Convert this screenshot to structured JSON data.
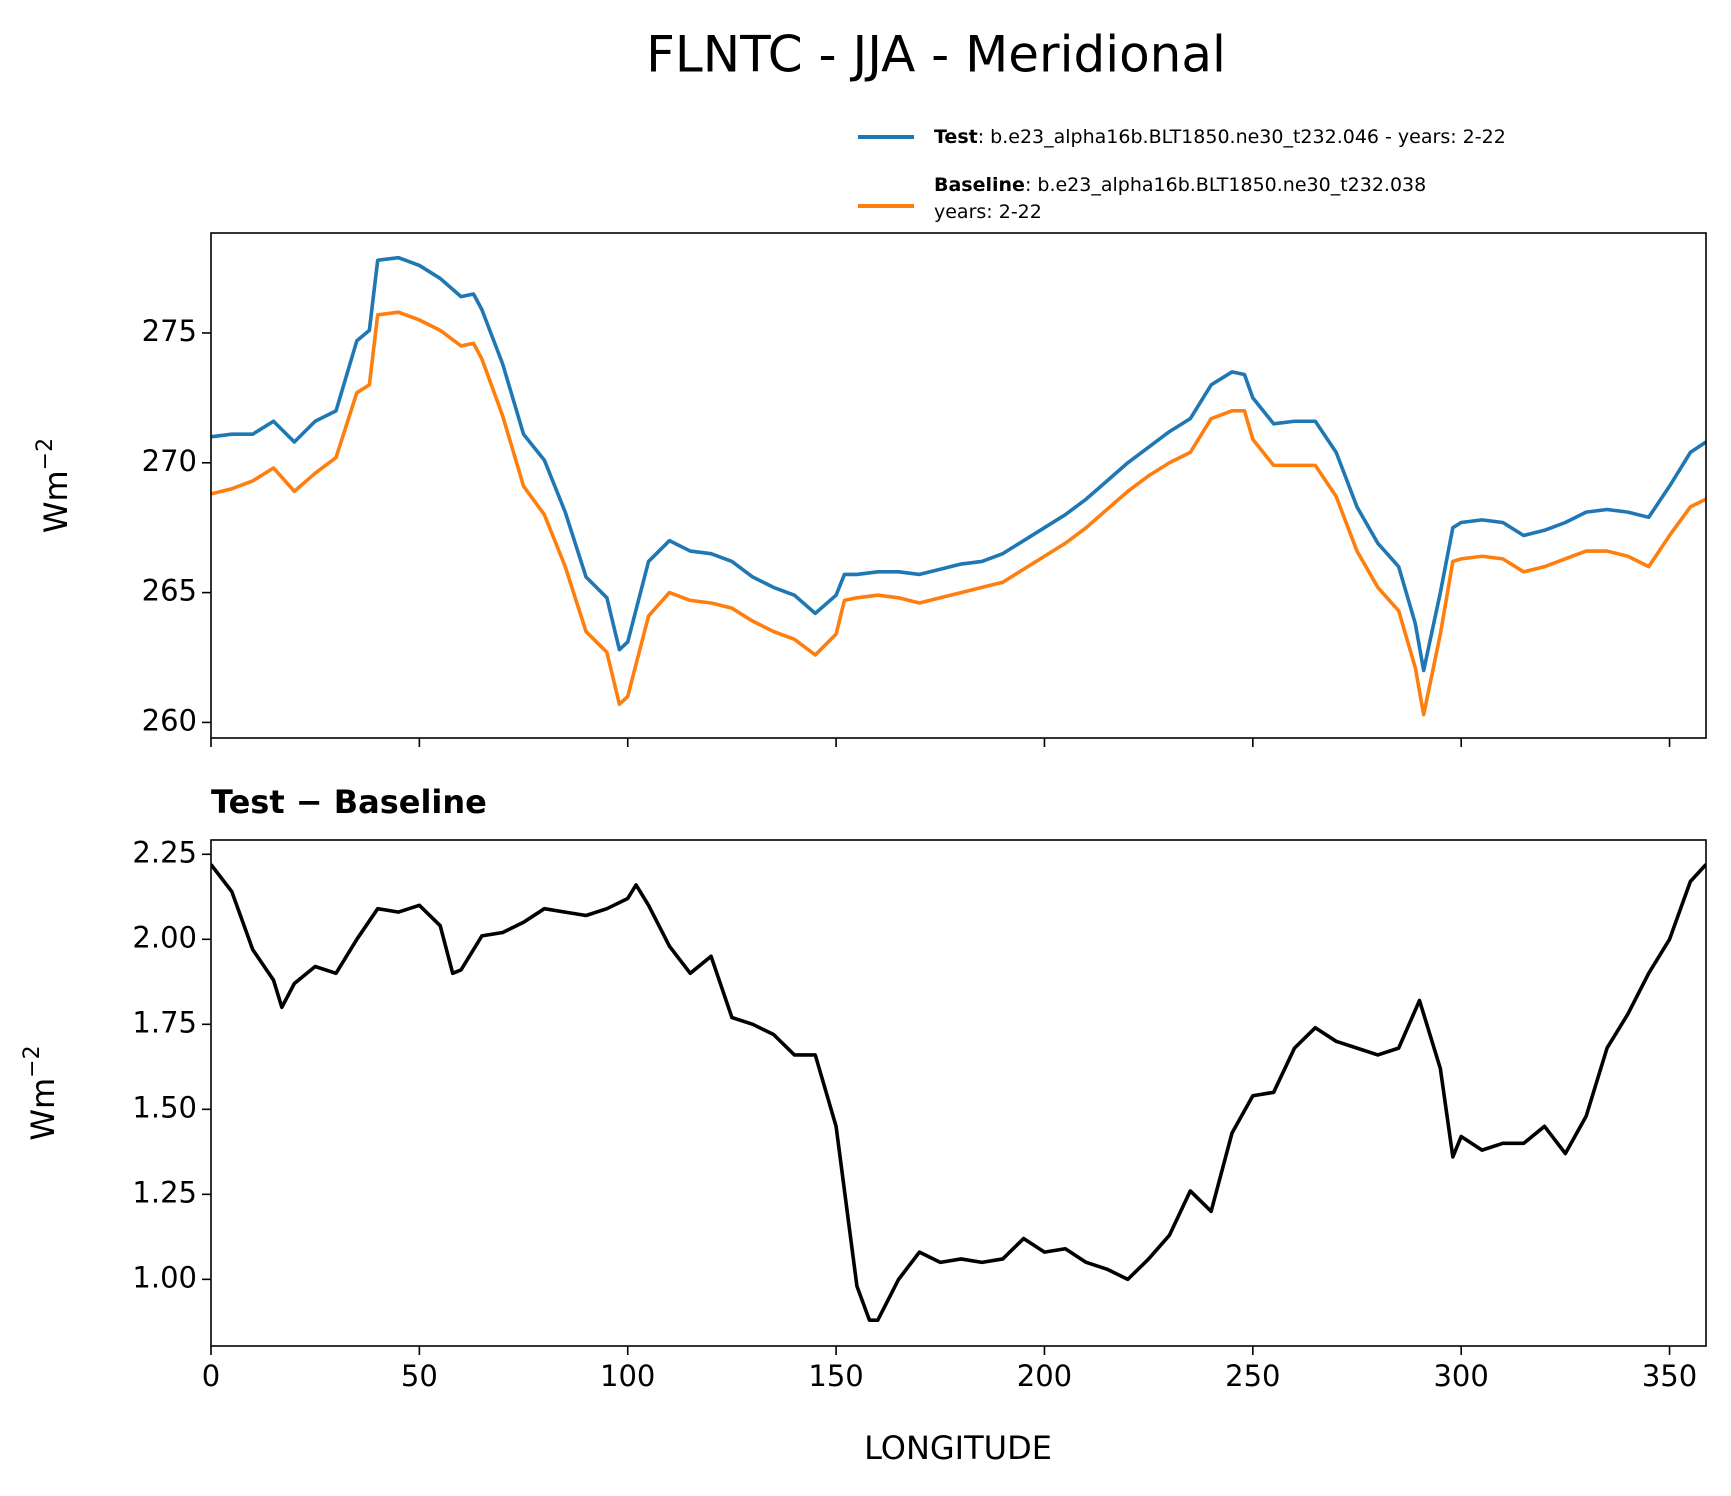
{
  "chart_data": [
    {
      "type": "line",
      "title": "FLNTC - JJA - Meridional",
      "ylabel": "Wm",
      "ylabel_sup": "−2",
      "xlim": [
        0,
        358.75
      ],
      "xticks": [
        0,
        50,
        100,
        150,
        200,
        250,
        300,
        350
      ],
      "ylim": [
        259.4,
        278.85
      ],
      "yticks": [
        260,
        265,
        270,
        275
      ],
      "x": [
        0,
        5,
        10,
        15,
        20,
        25,
        30,
        35,
        38,
        40,
        45,
        50,
        55,
        60,
        63,
        65,
        70,
        75,
        80,
        85,
        90,
        95,
        98,
        100,
        105,
        110,
        115,
        120,
        125,
        130,
        135,
        140,
        145,
        150,
        152,
        155,
        160,
        165,
        170,
        175,
        180,
        185,
        190,
        195,
        200,
        205,
        210,
        215,
        220,
        225,
        230,
        235,
        240,
        245,
        248,
        250,
        255,
        260,
        265,
        270,
        275,
        280,
        285,
        289,
        291,
        295,
        298,
        300,
        305,
        310,
        315,
        320,
        325,
        330,
        335,
        340,
        345,
        350,
        355,
        358.75
      ],
      "series": [
        {
          "name": "Test",
          "description": [
            ": b.e23_alpha16b.BLT1850.ne30_t232.046 - years: 2-22"
          ],
          "color": "#1f77b4",
          "values": [
            271.0,
            271.1,
            271.1,
            271.6,
            270.8,
            271.6,
            272.0,
            274.7,
            275.1,
            277.8,
            277.9,
            277.6,
            277.1,
            276.4,
            276.5,
            275.9,
            273.8,
            271.1,
            270.1,
            268.1,
            265.6,
            264.8,
            262.8,
            263.1,
            266.2,
            267.0,
            266.6,
            266.5,
            266.2,
            265.6,
            265.2,
            264.9,
            264.2,
            264.9,
            265.7,
            265.7,
            265.8,
            265.8,
            265.7,
            265.9,
            266.1,
            266.2,
            266.5,
            267.0,
            267.5,
            268.0,
            268.6,
            269.3,
            270.0,
            270.6,
            271.2,
            271.7,
            273.0,
            273.5,
            273.4,
            272.5,
            271.5,
            271.6,
            271.6,
            270.4,
            268.3,
            266.9,
            266.0,
            263.8,
            262.0,
            265.0,
            267.5,
            267.7,
            267.8,
            267.7,
            267.2,
            267.4,
            267.7,
            268.1,
            268.2,
            268.1,
            267.9,
            269.1,
            270.4,
            270.8
          ]
        },
        {
          "name": "Baseline",
          "description": [
            ": b.e23_alpha16b.BLT1850.ne30_t232.038",
            "years: 2-22"
          ],
          "color": "#ff7f0e",
          "values": [
            268.8,
            269.0,
            269.3,
            269.8,
            268.9,
            269.6,
            270.2,
            272.7,
            273.0,
            275.7,
            275.8,
            275.5,
            275.1,
            274.5,
            274.6,
            274.0,
            271.8,
            269.1,
            268.0,
            266.0,
            263.5,
            262.7,
            260.7,
            261.0,
            264.1,
            265.0,
            264.7,
            264.6,
            264.4,
            263.9,
            263.5,
            263.2,
            262.6,
            263.4,
            264.7,
            264.8,
            264.9,
            264.8,
            264.6,
            264.8,
            265.0,
            265.2,
            265.4,
            265.9,
            266.4,
            266.9,
            267.5,
            268.2,
            268.9,
            269.5,
            270.0,
            270.4,
            271.7,
            272.0,
            272.0,
            270.9,
            269.9,
            269.9,
            269.9,
            268.7,
            266.6,
            265.2,
            264.3,
            262.1,
            260.3,
            263.4,
            266.2,
            266.3,
            266.4,
            266.3,
            265.8,
            266.0,
            266.3,
            266.6,
            266.6,
            266.4,
            266.0,
            267.2,
            268.3,
            268.6
          ]
        }
      ]
    },
    {
      "type": "line",
      "title": "Test − Baseline",
      "ylabel": "Wm",
      "ylabel_sup": "−2",
      "xlabel": "LONGITUDE",
      "xlim": [
        0,
        358.75
      ],
      "xticks": [
        0,
        50,
        100,
        150,
        200,
        250,
        300,
        350
      ],
      "ylim": [
        0.804,
        2.292
      ],
      "yticks": [
        {
          "value": 1.0,
          "label": "1.00"
        },
        {
          "value": 1.25,
          "label": "1.25"
        },
        {
          "value": 1.5,
          "label": "1.50"
        },
        {
          "value": 1.75,
          "label": "1.75"
        },
        {
          "value": 2.0,
          "label": "2.00"
        },
        {
          "value": 2.25,
          "label": "2.25"
        }
      ],
      "x": [
        0,
        5,
        10,
        15,
        17,
        20,
        25,
        30,
        35,
        40,
        45,
        50,
        55,
        58,
        60,
        65,
        70,
        75,
        80,
        85,
        90,
        95,
        100,
        102,
        105,
        110,
        115,
        120,
        125,
        130,
        135,
        140,
        145,
        150,
        155,
        158,
        160,
        165,
        170,
        175,
        180,
        185,
        190,
        195,
        200,
        205,
        210,
        215,
        220,
        225,
        230,
        235,
        240,
        245,
        250,
        255,
        260,
        265,
        270,
        275,
        280,
        285,
        290,
        295,
        298,
        300,
        305,
        310,
        315,
        320,
        325,
        330,
        335,
        340,
        345,
        350,
        355,
        358.75
      ],
      "series": [
        {
          "color": "#000000",
          "values": [
            2.22,
            2.14,
            1.97,
            1.88,
            1.8,
            1.87,
            1.92,
            1.9,
            2.0,
            2.09,
            2.08,
            2.1,
            2.04,
            1.9,
            1.91,
            2.01,
            2.02,
            2.05,
            2.09,
            2.08,
            2.07,
            2.09,
            2.12,
            2.16,
            2.1,
            1.98,
            1.9,
            1.95,
            1.77,
            1.75,
            1.72,
            1.66,
            1.66,
            1.45,
            0.98,
            0.88,
            0.88,
            1.0,
            1.08,
            1.05,
            1.06,
            1.05,
            1.06,
            1.12,
            1.08,
            1.09,
            1.05,
            1.03,
            1.0,
            1.06,
            1.13,
            1.26,
            1.2,
            1.43,
            1.54,
            1.55,
            1.68,
            1.74,
            1.7,
            1.68,
            1.66,
            1.68,
            1.82,
            1.62,
            1.36,
            1.42,
            1.38,
            1.4,
            1.4,
            1.45,
            1.37,
            1.48,
            1.68,
            1.78,
            1.9,
            2.0,
            2.17,
            2.22
          ]
        }
      ]
    }
  ]
}
